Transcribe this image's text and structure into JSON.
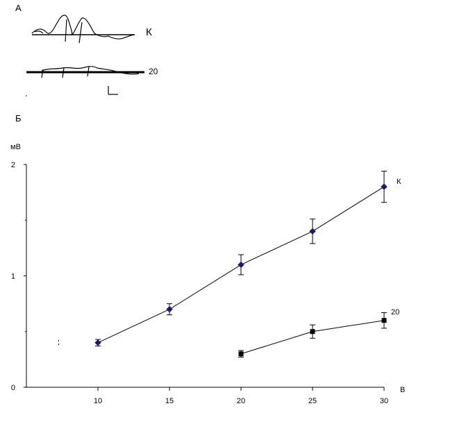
{
  "panels": {
    "a_label": "А",
    "b_label": "Б"
  },
  "traces": {
    "control_label": "К",
    "treated_label": "20"
  },
  "chart_data": {
    "type": "line",
    "title": "",
    "xlabel": "В",
    "ylabel": "мВ",
    "xlim": [
      5,
      30
    ],
    "ylim": [
      0,
      2
    ],
    "xticks": [
      10,
      15,
      20,
      25,
      30
    ],
    "yticks": [
      0,
      1,
      2
    ],
    "grid": false,
    "legend": "none",
    "series": [
      {
        "name": "К",
        "marker": "diamond",
        "color": "#1a1a6e",
        "points": [
          {
            "x": 10,
            "y": 0.4,
            "err": 0.03
          },
          {
            "x": 15,
            "y": 0.7,
            "err": 0.05
          },
          {
            "x": 20,
            "y": 1.1,
            "err": 0.09
          },
          {
            "x": 25,
            "y": 1.4,
            "err": 0.11
          },
          {
            "x": 30,
            "y": 1.8,
            "err": 0.14
          }
        ]
      },
      {
        "name": "20",
        "marker": "square",
        "color": "#000000",
        "points": [
          {
            "x": 20,
            "y": 0.3,
            "err": 0.03
          },
          {
            "x": 25,
            "y": 0.5,
            "err": 0.06
          },
          {
            "x": 30,
            "y": 0.6,
            "err": 0.07
          }
        ]
      }
    ]
  }
}
